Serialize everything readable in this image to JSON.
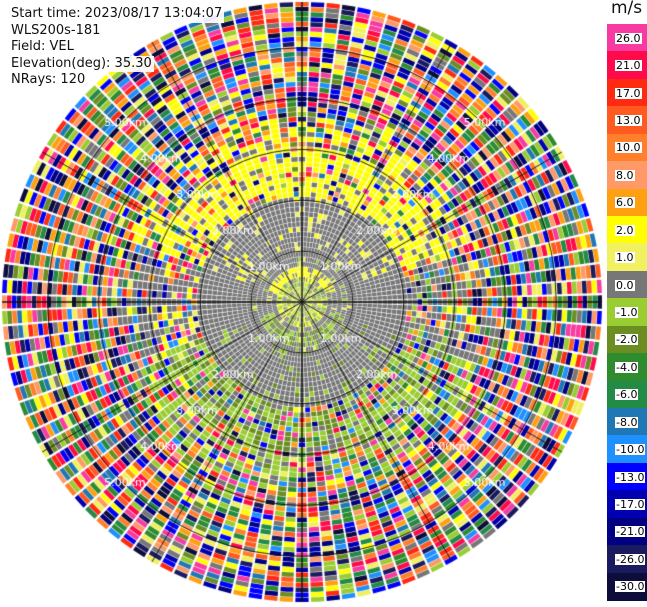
{
  "header": {
    "start_time": "Start time: 2023/08/17 13:04:07",
    "instrument": "WLS200s-181",
    "field": "Field: VEL",
    "elevation": "Elevation(deg): 35.30",
    "nrays": "NRays: 120"
  },
  "colorbar": {
    "unit": "m/s",
    "levels": [
      {
        "label": "26.0",
        "color": "#f73ba0"
      },
      {
        "label": "21.0",
        "color": "#ff0a4a"
      },
      {
        "label": "17.0",
        "color": "#ff2a12"
      },
      {
        "label": "13.0",
        "color": "#ff5a1f"
      },
      {
        "label": "10.0",
        "color": "#ff7f2a"
      },
      {
        "label": "8.0",
        "color": "#ff9966"
      },
      {
        "label": "6.0",
        "color": "#ffa010"
      },
      {
        "label": "2.0",
        "color": "#ffff00"
      },
      {
        "label": "1.0",
        "color": "#f0f060"
      },
      {
        "label": "0.0",
        "color": "#777777"
      },
      {
        "label": "-1.0",
        "color": "#9acd32"
      },
      {
        "label": "-2.0",
        "color": "#6b8e23"
      },
      {
        "label": "-4.0",
        "color": "#2e8b2e"
      },
      {
        "label": "-6.0",
        "color": "#238b45"
      },
      {
        "label": "-8.0",
        "color": "#1f78b4"
      },
      {
        "label": "-10.0",
        "color": "#1e90ff"
      },
      {
        "label": "-13.0",
        "color": "#0000ff"
      },
      {
        "label": "-17.0",
        "color": "#0000b0"
      },
      {
        "label": "-21.0",
        "color": "#000080"
      },
      {
        "label": "-26.0",
        "color": "#1a1a5e"
      },
      {
        "label": "-30.0",
        "color": "#0d0d3a"
      }
    ]
  },
  "chart_data": {
    "type": "heatmap",
    "projection": "polar PPI (plan position indicator)",
    "field": "VEL",
    "elevation_deg": 35.3,
    "n_rays": 120,
    "range_rings_km": [
      1,
      2,
      3,
      4,
      5
    ],
    "range_ring_labels": [
      "1.00km",
      "2.00km",
      "3.00km",
      "4.00km",
      "5.00km"
    ],
    "spoke_angles_deg": [
      0,
      30,
      60,
      90,
      120,
      150,
      180,
      210,
      240,
      270,
      300,
      330
    ],
    "regions": [
      {
        "range_km": [
          0.0,
          0.45
        ],
        "dominant": "-1.0 to 1.0 (mixed green / yellow)"
      },
      {
        "range_km": [
          0.45,
          1.0
        ],
        "dominant": "0.0 (gray), yellow arc to the north, green to the south-east"
      },
      {
        "range_km": [
          1.0,
          2.1
        ],
        "dominant": "0.0 (gray)"
      },
      {
        "range_km": [
          2.1,
          3.0
        ],
        "dominant": "2.0 (yellow) to the north, -1.0 to -2.0 (green) to the south"
      },
      {
        "range_km": [
          3.0,
          5.9
        ],
        "dominant": "noisy, all values"
      }
    ]
  }
}
